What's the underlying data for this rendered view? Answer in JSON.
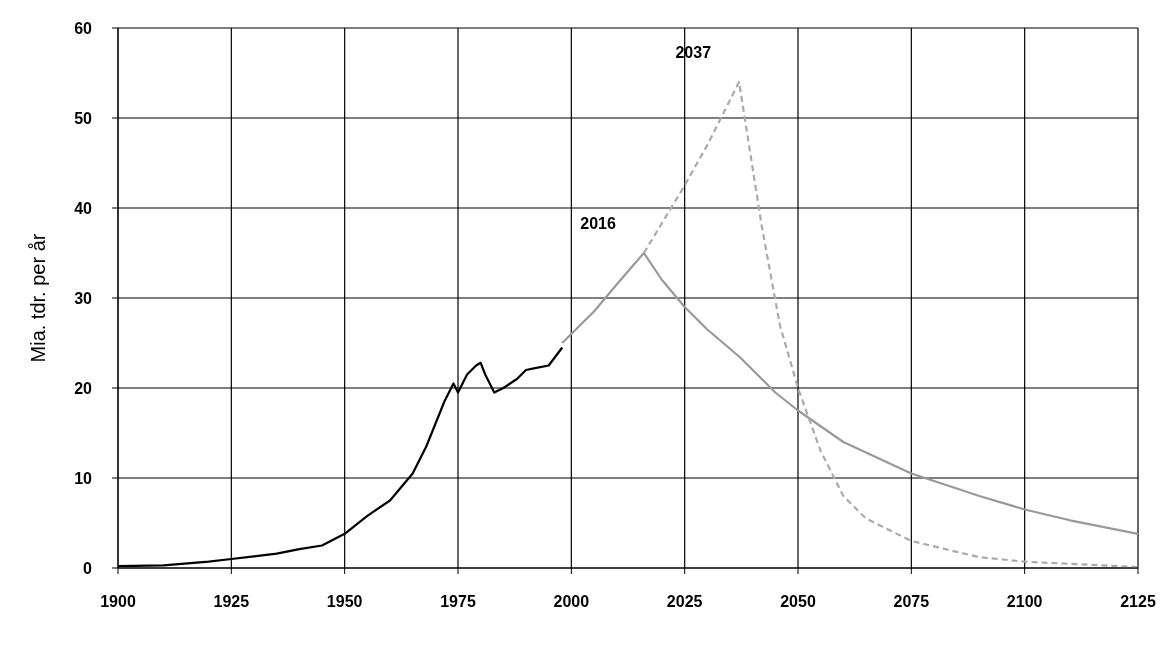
{
  "chart_data": {
    "type": "line",
    "ylabel": "Mia. tdr. per år",
    "xlim": [
      1900,
      2125
    ],
    "xticks": [
      1900,
      1925,
      1950,
      1975,
      2000,
      2025,
      2050,
      2075,
      2100,
      2125
    ],
    "ylim": [
      0,
      60
    ],
    "yticks": [
      0,
      10,
      20,
      30,
      40,
      50,
      60
    ],
    "grid": true,
    "legend": false,
    "marker": "none",
    "series": [
      {
        "color": "#000000",
        "x": [
          1900,
          1910,
          1920,
          1925,
          1930,
          1935,
          1940,
          1945,
          1950,
          1955,
          1960,
          1965,
          1968,
          1970,
          1972,
          1974,
          1975,
          1976,
          1977,
          1979,
          1980,
          1981,
          1983,
          1985,
          1988,
          1990,
          1992,
          1995,
          1998
        ],
        "values": [
          0.2,
          0.3,
          0.7,
          1,
          1.3,
          1.6,
          2.1,
          2.5,
          3.8,
          5.8,
          7.5,
          10.5,
          13.5,
          16,
          18.5,
          20.5,
          19.5,
          20.5,
          21.5,
          22.5,
          22.8,
          21.5,
          19.5,
          20,
          21,
          22,
          22.2,
          22.5,
          24.5
        ]
      },
      {
        "color": "#999999",
        "x": [
          1998,
          2005,
          2010,
          2016,
          2020,
          2025,
          2030,
          2037,
          2045,
          2050,
          2060,
          2075,
          2090,
          2100,
          2110,
          2125
        ],
        "values": [
          25,
          28.5,
          31.5,
          35,
          32,
          29,
          26.5,
          23.5,
          19.5,
          17.5,
          14,
          10.5,
          8,
          6.5,
          5.3,
          3.8
        ]
      },
      {
        "color": "#aaaaaa",
        "line_style": "dashed",
        "x": [
          2016,
          2025,
          2030,
          2037,
          2042,
          2046,
          2050,
          2055,
          2060,
          2065,
          2075,
          2090,
          2100,
          2125
        ],
        "values": [
          35,
          42.5,
          47,
          54,
          38,
          27,
          20,
          13,
          8,
          5.5,
          3,
          1.2,
          0.7,
          0.1
        ]
      }
    ],
    "annotations": [
      {
        "text": "2016",
        "x": 2016,
        "y": 35
      },
      {
        "text": "2037",
        "x": 2037,
        "y": 54
      }
    ]
  }
}
